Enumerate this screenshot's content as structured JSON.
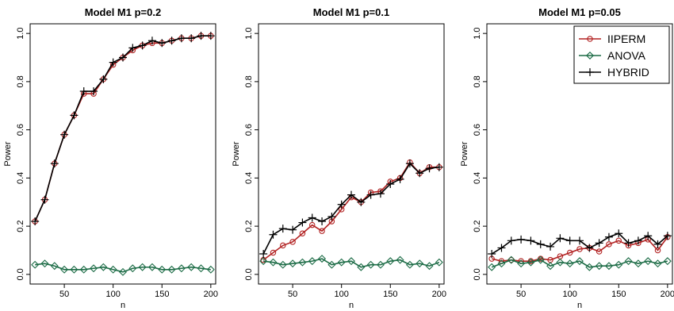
{
  "chart_data": [
    {
      "type": "line",
      "title": "Model M1 p=0.2",
      "xlabel": "n",
      "ylabel": "Power",
      "x": [
        20,
        30,
        40,
        50,
        60,
        70,
        80,
        90,
        100,
        110,
        120,
        130,
        140,
        150,
        160,
        170,
        180,
        190,
        200
      ],
      "xticks": [
        50,
        100,
        150,
        200
      ],
      "yticks": [
        "0.0",
        "0.2",
        "0.4",
        "0.6",
        "0.8",
        "1.0"
      ],
      "ylim": [
        0,
        1
      ],
      "legend": false,
      "series": [
        {
          "name": "IIPERM",
          "color": "#b22222",
          "marker": "circle",
          "values": [
            0.22,
            0.31,
            0.46,
            0.58,
            0.66,
            0.75,
            0.75,
            0.81,
            0.87,
            0.9,
            0.93,
            0.95,
            0.96,
            0.96,
            0.97,
            0.98,
            0.98,
            0.99,
            0.99
          ]
        },
        {
          "name": "ANOVA",
          "color": "#1b6b45",
          "marker": "diamond",
          "values": [
            0.04,
            0.045,
            0.035,
            0.02,
            0.02,
            0.02,
            0.025,
            0.03,
            0.02,
            0.01,
            0.025,
            0.03,
            0.03,
            0.02,
            0.02,
            0.025,
            0.03,
            0.025,
            0.02
          ]
        },
        {
          "name": "HYBRID",
          "color": "#000000",
          "marker": "plus",
          "values": [
            0.22,
            0.31,
            0.46,
            0.58,
            0.66,
            0.76,
            0.76,
            0.81,
            0.88,
            0.9,
            0.94,
            0.95,
            0.97,
            0.96,
            0.97,
            0.98,
            0.98,
            0.99,
            0.99
          ]
        }
      ]
    },
    {
      "type": "line",
      "title": "Model M1 p=0.1",
      "xlabel": "n",
      "ylabel": "Power",
      "x": [
        20,
        30,
        40,
        50,
        60,
        70,
        80,
        90,
        100,
        110,
        120,
        130,
        140,
        150,
        160,
        170,
        180,
        190,
        200
      ],
      "xticks": [
        50,
        100,
        150,
        200
      ],
      "yticks": [
        "0.0",
        "0.2",
        "0.4",
        "0.6",
        "0.8",
        "1.0"
      ],
      "ylim": [
        0,
        1
      ],
      "legend": false,
      "series": [
        {
          "name": "IIPERM",
          "color": "#b22222",
          "marker": "circle",
          "values": [
            0.06,
            0.09,
            0.12,
            0.135,
            0.17,
            0.205,
            0.18,
            0.22,
            0.27,
            0.32,
            0.3,
            0.34,
            0.345,
            0.385,
            0.4,
            0.465,
            0.42,
            0.445,
            0.445
          ]
        },
        {
          "name": "ANOVA",
          "color": "#1b6b45",
          "marker": "diamond",
          "values": [
            0.055,
            0.05,
            0.04,
            0.045,
            0.05,
            0.055,
            0.065,
            0.04,
            0.05,
            0.055,
            0.03,
            0.04,
            0.04,
            0.055,
            0.06,
            0.04,
            0.045,
            0.035,
            0.05
          ]
        },
        {
          "name": "HYBRID",
          "color": "#000000",
          "marker": "plus",
          "values": [
            0.085,
            0.165,
            0.19,
            0.185,
            0.215,
            0.235,
            0.22,
            0.24,
            0.29,
            0.33,
            0.3,
            0.33,
            0.335,
            0.375,
            0.395,
            0.46,
            0.42,
            0.44,
            0.445
          ]
        }
      ]
    },
    {
      "type": "line",
      "title": "Model M1 p=0.05",
      "xlabel": "n",
      "ylabel": "Power",
      "x": [
        20,
        30,
        40,
        50,
        60,
        70,
        80,
        90,
        100,
        110,
        120,
        130,
        140,
        150,
        160,
        170,
        180,
        190,
        200
      ],
      "xticks": [
        50,
        100,
        150,
        200
      ],
      "yticks": [
        "0.0",
        "0.2",
        "0.4",
        "0.6",
        "0.8",
        "1.0"
      ],
      "ylim": [
        0,
        1
      ],
      "legend": true,
      "legend_position": "top-right",
      "series": [
        {
          "name": "IIPERM",
          "color": "#b22222",
          "marker": "circle",
          "values": [
            0.065,
            0.055,
            0.06,
            0.055,
            0.055,
            0.065,
            0.06,
            0.075,
            0.09,
            0.105,
            0.11,
            0.095,
            0.125,
            0.14,
            0.12,
            0.13,
            0.145,
            0.1,
            0.155
          ]
        },
        {
          "name": "ANOVA",
          "color": "#1b6b45",
          "marker": "diamond",
          "values": [
            0.03,
            0.045,
            0.06,
            0.045,
            0.05,
            0.06,
            0.035,
            0.05,
            0.045,
            0.055,
            0.03,
            0.035,
            0.035,
            0.04,
            0.055,
            0.045,
            0.055,
            0.045,
            0.055
          ]
        },
        {
          "name": "HYBRID",
          "color": "#000000",
          "marker": "plus",
          "values": [
            0.085,
            0.11,
            0.14,
            0.145,
            0.14,
            0.125,
            0.115,
            0.15,
            0.14,
            0.14,
            0.11,
            0.13,
            0.155,
            0.17,
            0.13,
            0.14,
            0.16,
            0.125,
            0.16
          ]
        }
      ]
    }
  ]
}
